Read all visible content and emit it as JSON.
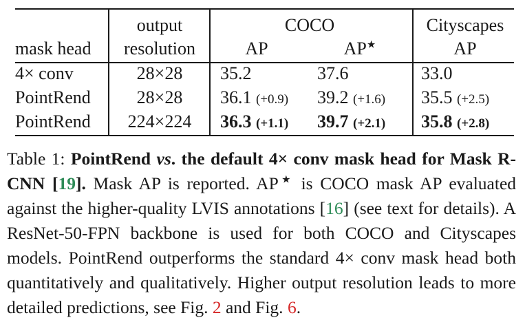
{
  "table": {
    "header_row1": {
      "output": "output",
      "coco": "COCO",
      "cityscapes": "Cityscapes"
    },
    "header_row2": {
      "mask_head": "mask head",
      "resolution": "resolution",
      "coco_ap": "AP",
      "coco_ap_star": "AP",
      "star": "★",
      "city_ap": "AP"
    },
    "rows": [
      {
        "mask_head": "4× conv",
        "resolution": "28×28",
        "coco_ap": "35.2",
        "coco_ap_delta": "",
        "coco_ap_star": "37.6",
        "coco_ap_star_delta": "",
        "city_ap": "33.0",
        "city_ap_delta": ""
      },
      {
        "mask_head": "PointRend",
        "resolution": "28×28",
        "coco_ap": "36.1",
        "coco_ap_delta": "(+0.9)",
        "coco_ap_star": "39.2",
        "coco_ap_star_delta": "(+1.6)",
        "city_ap": "35.5",
        "city_ap_delta": "(+2.5)"
      },
      {
        "mask_head": "PointRend",
        "resolution": "224×224",
        "coco_ap": "36.3",
        "coco_ap_delta": "(+1.1)",
        "coco_ap_star": "39.7",
        "coco_ap_star_delta": "(+2.1)",
        "city_ap": "35.8",
        "city_ap_delta": "(+2.8)"
      }
    ]
  },
  "caption": {
    "label": "Table 1: ",
    "bold_1": "PointRend ",
    "bold_vs": "vs",
    "bold_2": ". the default 4× conv mask head for Mask R-CNN ",
    "ref_19_open": "[",
    "ref_19": "19",
    "ref_19_close": "]",
    "bold_3": ".",
    "text_1": " Mask AP is reported. AP",
    "star": "★",
    "text_2": " is COCO mask AP evaluated against the higher-quality LVIS annotations [",
    "ref_16": "16",
    "text_3": "] (see text for details). A ResNet-50-FPN backbone is used for both COCO and Cityscapes models. PointRend outperforms the standard 4× conv mask head both quantitatively and qualitatively. Higher output resolution leads to more detailed predictions, see Fig. ",
    "fig_2": "2",
    "text_4": " and Fig. ",
    "fig_6": "6",
    "text_5": "."
  }
}
